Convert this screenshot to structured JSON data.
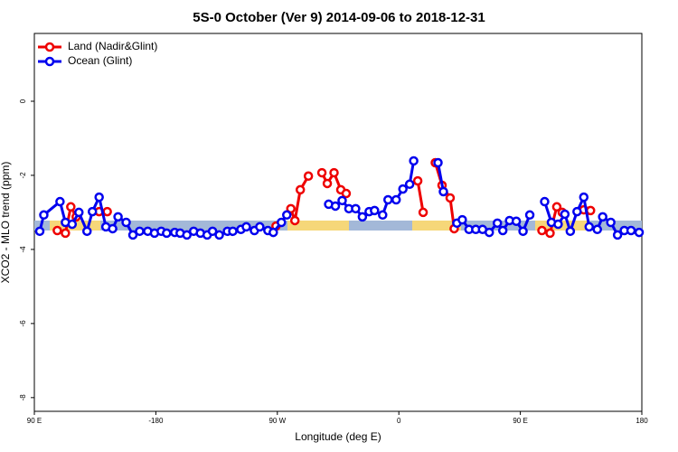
{
  "chart_data": {
    "type": "line",
    "title": "5S-0 October (Ver 9)   2014-09-06 to 2018-12-31",
    "x_label": "Longitude (deg E)",
    "y_label": "XCO2 - MLO trend (ppm)",
    "xlim": [
      -270,
      180
    ],
    "ylim": [
      -8.37,
      1.83
    ],
    "xticks": [
      {
        "value": -270,
        "label": "90 E"
      },
      -180,
      {
        "value": -90,
        "label": "90 W"
      },
      0,
      {
        "value": 90,
        "label": "90 E"
      },
      180
    ],
    "yticks": [
      -8,
      -6,
      -4,
      -2,
      0
    ],
    "legend": "upper left",
    "series": [
      {
        "name": "Land (Nadir&Glint)",
        "color": "#ee0000",
        "x": [
          -253,
          -247,
          -243,
          -239,
          null,
          -222,
          -216,
          null,
          -91,
          null,
          -80,
          -77,
          -73,
          -67,
          null,
          -57,
          -53,
          -48,
          -43,
          -39,
          null,
          14,
          18,
          null,
          27,
          32,
          38,
          41,
          null,
          106,
          112,
          117,
          121,
          null,
          137,
          142
        ],
        "values": [
          -3.49,
          -3.56,
          -2.85,
          -3.12,
          null,
          -2.98,
          -2.98,
          null,
          -3.37,
          null,
          -2.9,
          -3.22,
          -2.39,
          -2.02,
          null,
          -1.93,
          -2.22,
          -1.93,
          -2.39,
          -2.49,
          null,
          -2.15,
          -3.0,
          null,
          -1.66,
          -2.27,
          -2.61,
          -3.44,
          null,
          -3.49,
          -3.56,
          -2.85,
          -3.0,
          null,
          -2.93,
          -2.95
        ]
      },
      {
        "name": "Ocean (Glint)",
        "color": "#0000ee",
        "x": [
          -266,
          -263,
          -251,
          -247,
          -242,
          -237,
          -231,
          -227,
          -222,
          -217,
          -212,
          -208,
          -202,
          -197,
          -192,
          -186,
          -181,
          -176,
          -172,
          -166,
          -162,
          -157,
          -152,
          -147,
          -142,
          -138,
          -133,
          -127,
          -123,
          -117,
          -113,
          -107,
          -103,
          -97,
          -93,
          -87,
          -83,
          null,
          -52,
          -47,
          -42,
          -37,
          -32,
          -27,
          -22,
          -18,
          -12,
          -8,
          -2,
          3,
          8,
          11,
          null,
          29,
          33,
          null,
          43,
          47,
          52,
          57,
          62,
          67,
          73,
          77,
          82,
          87,
          92,
          97,
          null,
          108,
          113,
          118,
          123,
          127,
          132,
          137,
          141,
          147,
          151,
          157,
          162,
          167,
          172,
          178
        ],
        "values": [
          -3.51,
          -3.07,
          -2.71,
          -3.27,
          -3.32,
          -3.0,
          -3.51,
          -2.98,
          -2.59,
          -3.39,
          -3.44,
          -3.12,
          -3.27,
          -3.61,
          -3.51,
          -3.51,
          -3.56,
          -3.51,
          -3.56,
          -3.54,
          -3.56,
          -3.61,
          -3.51,
          -3.56,
          -3.61,
          -3.51,
          -3.61,
          -3.51,
          -3.51,
          -3.46,
          -3.39,
          -3.49,
          -3.39,
          -3.49,
          -3.54,
          -3.27,
          -3.07,
          null,
          -2.78,
          -2.83,
          -2.68,
          -2.9,
          -2.9,
          -3.12,
          -2.98,
          -2.95,
          -3.07,
          -2.66,
          -2.66,
          -2.37,
          -2.24,
          -1.61,
          null,
          -1.66,
          -2.44,
          null,
          -3.29,
          -3.2,
          -3.46,
          -3.46,
          -3.46,
          -3.54,
          -3.29,
          -3.49,
          -3.22,
          -3.24,
          -3.51,
          -3.07,
          null,
          -2.71,
          -3.27,
          -3.32,
          -3.05,
          -3.51,
          -2.98,
          -2.59,
          -3.39,
          -3.46,
          -3.12,
          -3.27,
          -3.61,
          -3.49,
          -3.49,
          -3.54
        ]
      }
    ]
  }
}
